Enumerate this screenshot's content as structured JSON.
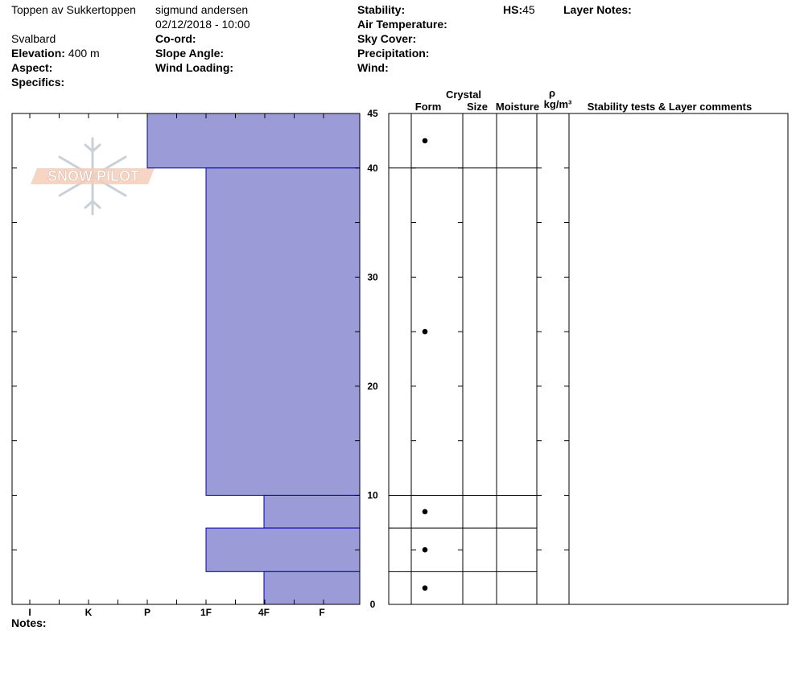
{
  "header": {
    "location": "Toppen av Sukkertoppen",
    "observer": "sigmund andersen",
    "datetime": "02/12/2018 - 10:00",
    "region": "Svalbard",
    "elevation_label": "Elevation:",
    "elevation_value": "400 m",
    "aspect_label": "Aspect:",
    "specifics_label": "Specifics:",
    "coord_label": "Co-ord:",
    "slope_label": "Slope Angle:",
    "wind_loading_label": "Wind Loading:",
    "stability_label": "Stability:",
    "air_temp_label": "Air Temperature:",
    "sky_cover_label": "Sky Cover:",
    "precip_label": "Precipitation:",
    "wind_label": "Wind:",
    "hs_label": "HS:",
    "hs_value": "45",
    "layer_notes_label": "Layer Notes:"
  },
  "notes_label": "Notes:",
  "logo_text": "SNOW PILOT",
  "columns": {
    "crystal": "Crystal",
    "form": "Form",
    "size": "Size",
    "moisture": "Moisture",
    "rho": "ρ",
    "density_unit": "kg/m³",
    "comments": "Stability tests & Layer comments"
  },
  "chart_data": {
    "type": "bar",
    "title": "",
    "x_axis": {
      "label": "",
      "categories": [
        "I",
        "K",
        "P",
        "1F",
        "4F",
        "F"
      ]
    },
    "y_axis": {
      "label": "",
      "range": [
        0,
        45
      ],
      "ticks": [
        0,
        10,
        20,
        30,
        40,
        45
      ]
    },
    "layers": [
      {
        "bottom": 40,
        "top": 45,
        "hardness": "P"
      },
      {
        "bottom": 10,
        "top": 40,
        "hardness": "1F"
      },
      {
        "bottom": 7,
        "top": 10,
        "hardness": "4F"
      },
      {
        "bottom": 3,
        "top": 7,
        "hardness": "1F"
      },
      {
        "bottom": 0,
        "top": 3,
        "hardness": "4F"
      }
    ],
    "crystal_form_marks": [
      {
        "height": 42.5,
        "symbol": "•"
      },
      {
        "height": 25,
        "symbol": "•"
      },
      {
        "height": 8.5,
        "symbol": "•"
      },
      {
        "height": 5,
        "symbol": "•"
      },
      {
        "height": 1.5,
        "symbol": "•"
      }
    ],
    "colors": {
      "layer_fill": "#9b9bd8",
      "layer_stroke": "#0000aa"
    }
  }
}
